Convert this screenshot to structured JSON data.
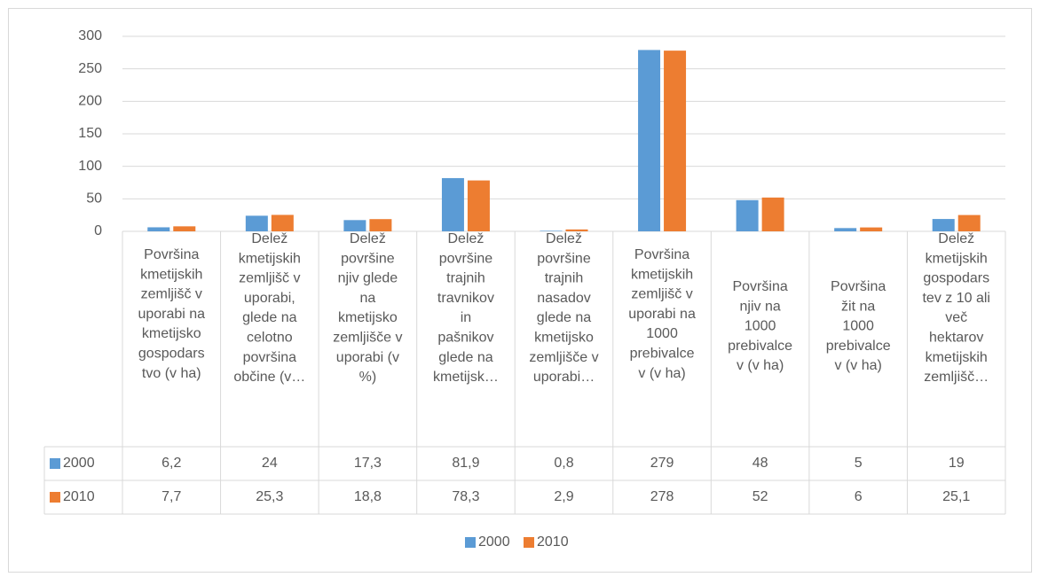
{
  "chart_data": {
    "type": "bar",
    "categories": [
      "Površina\nkmetijskih\nzemljišč v\nuporabi na\nkmetijsko\ngospodars\ntvo (v ha)",
      "Delež\nkmetijskih\nzemljišč v\nuporabi,\nglede na\ncelotno\npovršina\nobčine (v…",
      "Delež\npovršine\nnjiv glede\nna\nkmetijsko\nzemljišče v\nuporabi (v\n%)",
      "Delež\npovršine\ntrajnih\ntravnikov\nin\npašnikov\nglede na\nkmetijsk…",
      "Delež\npovršine\ntrajnih\nnasadov\nglede na\nkmetijsko\nzemljišče v\nuporabi…",
      "Površina\nkmetijskih\nzemljišč v\nuporabi na\n1000\nprebivalce\nv (v ha)",
      "Površina\nnjiv na\n1000\nprebivalce\nv (v ha)",
      "Površina\nžit na\n1000\nprebivalce\nv (v ha)",
      "Delež\nkmetijskih\ngospodars\ntev z 10 ali\nveč\nhektarov\nkmetijskih\nzemljišč…"
    ],
    "series": [
      {
        "name": "2000",
        "color": "#5b9bd5",
        "values": [
          6.2,
          24,
          17.3,
          81.9,
          0.8,
          279,
          48,
          5,
          19
        ],
        "value_labels": [
          "6,2",
          "24",
          "17,3",
          "81,9",
          "0,8",
          "279",
          "48",
          "5",
          "19"
        ]
      },
      {
        "name": "2010",
        "color": "#ed7d31",
        "values": [
          7.7,
          25.3,
          18.8,
          78.3,
          2.9,
          278,
          52,
          6,
          25.1
        ],
        "value_labels": [
          "7,7",
          "25,3",
          "18,8",
          "78,3",
          "2,9",
          "278",
          "52",
          "6",
          "25,1"
        ]
      }
    ],
    "ylim": [
      0,
      300
    ],
    "yticks": [
      0,
      50,
      100,
      150,
      200,
      250,
      300
    ],
    "grid": true,
    "legend": "bottom"
  }
}
